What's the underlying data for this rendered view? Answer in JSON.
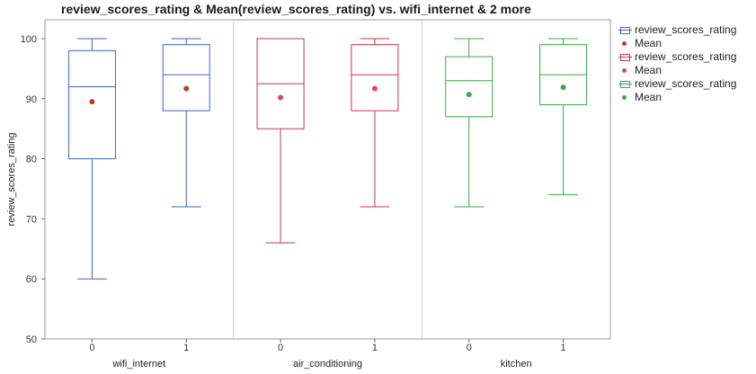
{
  "chart_data": {
    "type": "box",
    "title": "review_scores_rating & Mean(review_scores_rating) vs. wifi_internet & 2 more",
    "ylabel": "review_scores_rating",
    "ylim": [
      50,
      100
    ],
    "yticks": [
      50,
      60,
      70,
      80,
      90,
      100
    ],
    "grid": false,
    "legend_position": "right",
    "groups": [
      {
        "name": "wifi_internet",
        "color": "#3e63b8",
        "boxes": [
          {
            "category": "0",
            "min": 60,
            "q1": 80,
            "median": 92,
            "q3": 98,
            "max": 100,
            "mean": 89.5
          },
          {
            "category": "1",
            "min": 72,
            "q1": 88,
            "median": 94,
            "q3": 99,
            "max": 100,
            "mean": 91.7
          }
        ]
      },
      {
        "name": "air_conditioning",
        "color": "#c0394d",
        "boxes": [
          {
            "category": "0",
            "min": 66,
            "q1": 85,
            "median": 92.5,
            "q3": 100,
            "max": 100,
            "mean": 90.2
          },
          {
            "category": "1",
            "min": 72,
            "q1": 88,
            "median": 94,
            "q3": 99,
            "max": 100,
            "mean": 91.7
          }
        ]
      },
      {
        "name": "kitchen",
        "color": "#3aa845",
        "boxes": [
          {
            "category": "0",
            "min": 72,
            "q1": 87,
            "median": 93,
            "q3": 97,
            "max": 100,
            "mean": 90.7
          },
          {
            "category": "1",
            "min": 74,
            "q1": 89,
            "median": 94,
            "q3": 99,
            "max": 100,
            "mean": 91.9
          }
        ]
      }
    ],
    "legend": [
      {
        "label": "review_scores_rating",
        "kind": "box",
        "color": "#3e63b8"
      },
      {
        "label": "Mean",
        "kind": "dot",
        "color": "#c0392b"
      },
      {
        "label": "review_scores_rating",
        "kind": "box",
        "color": "#c0394d"
      },
      {
        "label": "Mean",
        "kind": "dot",
        "color": "#d9485a"
      },
      {
        "label": "review_scores_rating",
        "kind": "box",
        "color": "#3aa845"
      },
      {
        "label": "Mean",
        "kind": "dot",
        "color": "#3aa845"
      }
    ],
    "mean_colors": [
      "#c0392b",
      "#d9485a",
      "#3aa845"
    ]
  }
}
